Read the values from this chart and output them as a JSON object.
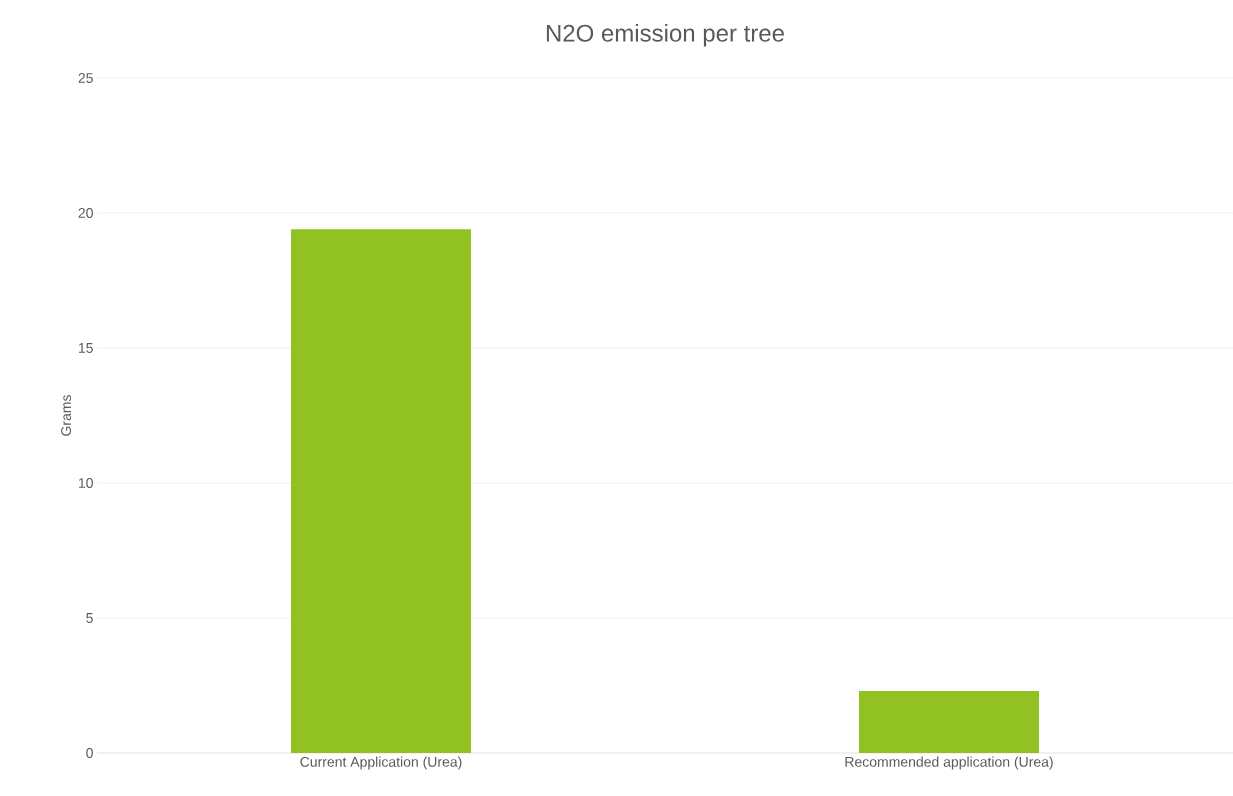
{
  "chart_data": {
    "type": "bar",
    "title": "N2O emission per tree",
    "ylabel": "Grams",
    "categories": [
      "Current Application (Urea)",
      "Recommended application (Urea)"
    ],
    "values": [
      19.4,
      2.3
    ],
    "color": "#92c123",
    "ylim": [
      0,
      25
    ],
    "yticks": [
      0,
      5,
      10,
      15,
      20,
      25
    ],
    "grid": "y"
  }
}
